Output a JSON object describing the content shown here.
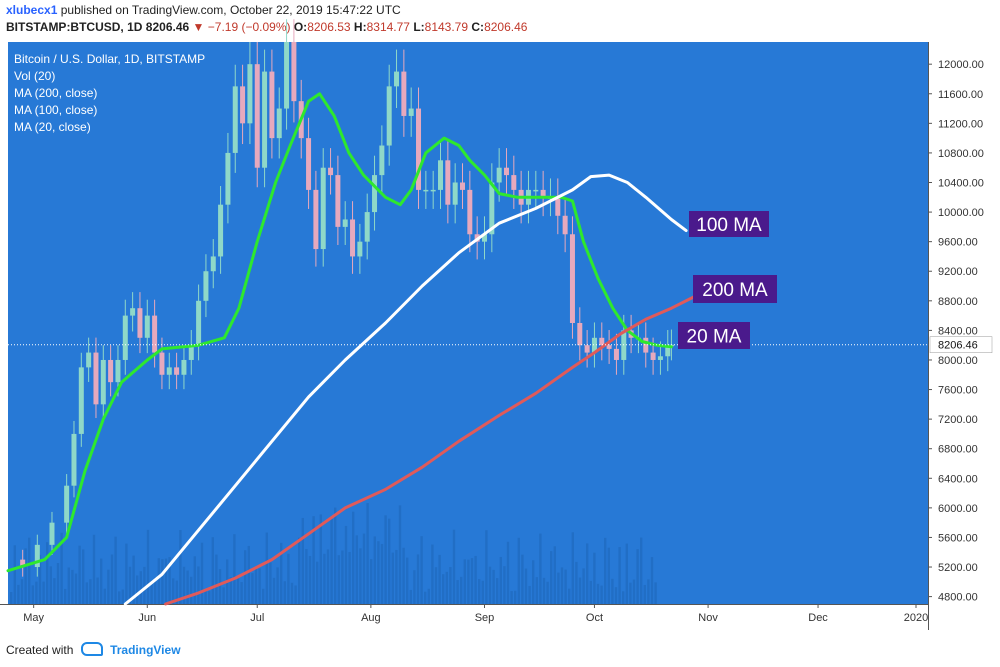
{
  "header": {
    "username": "xlubecx1",
    "published_text": "published on TradingView.com, October 22, 2019 15:47:22 UTC",
    "symbol_text": "BITSTAMP:BTCUSD, 1D",
    "last_price": "8206.46",
    "change_text": "−7.19 (−0.09%)",
    "open_label": "O:",
    "open": "8206.53",
    "high_label": "H:",
    "high": "8314.77",
    "low_label": "L:",
    "low": "8143.79",
    "close_label": "C:",
    "close": "8206.46"
  },
  "legend": [
    "Bitcoin / U.S. Dollar, 1D, BITSTAMP",
    "Vol (20)",
    "MA (200, close)",
    "MA (100, close)",
    "MA (20, close)"
  ],
  "footer": {
    "created_with": "Created with",
    "brand": "TradingView"
  },
  "annotations": [
    {
      "text": "100 MA",
      "series": "MA (100, close)"
    },
    {
      "text": "200 MA",
      "series": "MA (200, close)"
    },
    {
      "text": "20 MA",
      "series": "MA (20, close)"
    }
  ],
  "colors": {
    "background": "#2779d6",
    "ma20": "#2ee82e",
    "ma100": "#ffffff",
    "ma200": "#e05a5a",
    "up_candle": "#8fd8c8",
    "down_candle": "#e6a9bd",
    "label_bg": "#4a1a8c",
    "price_tag": "#ffffff"
  },
  "chart_data": {
    "type": "line",
    "title": "Bitcoin / U.S. Dollar, 1D, BITSTAMP",
    "x_ticks": [
      "May",
      "Jun",
      "Jul",
      "Aug",
      "Sep",
      "Oct",
      "Nov",
      "Dec",
      "2020"
    ],
    "y_ticks": [
      "4800.00",
      "5200.00",
      "5600.00",
      "6000.00",
      "6400.00",
      "6800.00",
      "7200.00",
      "7600.00",
      "8000.00",
      "8400.00",
      "8800.00",
      "9200.00",
      "9600.00",
      "10000.00",
      "10400.00",
      "10800.00",
      "11200.00",
      "11600.00",
      "12000.00"
    ],
    "ylim": [
      4700,
      12300
    ],
    "last_price_tag": "8206.46",
    "last_price": 8206.46,
    "date_range": [
      "2019-04-24",
      "2019-12-31"
    ],
    "candles_approx": [
      [
        "2019-04-24",
        5300
      ],
      [
        "2019-04-28",
        5200
      ],
      [
        "2019-05-02",
        5500
      ],
      [
        "2019-05-06",
        5800
      ],
      [
        "2019-05-10",
        6300
      ],
      [
        "2019-05-12",
        7000
      ],
      [
        "2019-05-14",
        7900
      ],
      [
        "2019-05-16",
        8100
      ],
      [
        "2019-05-18",
        7400
      ],
      [
        "2019-05-20",
        8000
      ],
      [
        "2019-05-22",
        7700
      ],
      [
        "2019-05-24",
        8000
      ],
      [
        "2019-05-26",
        8600
      ],
      [
        "2019-05-28",
        8700
      ],
      [
        "2019-05-30",
        8300
      ],
      [
        "2019-06-01",
        8600
      ],
      [
        "2019-06-03",
        8100
      ],
      [
        "2019-06-05",
        7800
      ],
      [
        "2019-06-07",
        7900
      ],
      [
        "2019-06-09",
        7800
      ],
      [
        "2019-06-11",
        8000
      ],
      [
        "2019-06-13",
        8200
      ],
      [
        "2019-06-15",
        8800
      ],
      [
        "2019-06-17",
        9200
      ],
      [
        "2019-06-19",
        9400
      ],
      [
        "2019-06-21",
        10100
      ],
      [
        "2019-06-23",
        10800
      ],
      [
        "2019-06-25",
        11700
      ],
      [
        "2019-06-27",
        11200
      ],
      [
        "2019-06-29",
        12000
      ],
      [
        "2019-07-01",
        10600
      ],
      [
        "2019-07-03",
        11900
      ],
      [
        "2019-07-05",
        11000
      ],
      [
        "2019-07-07",
        11400
      ],
      [
        "2019-07-09",
        12300
      ],
      [
        "2019-07-11",
        11500
      ],
      [
        "2019-07-13",
        11000
      ],
      [
        "2019-07-15",
        10300
      ],
      [
        "2019-07-17",
        9500
      ],
      [
        "2019-07-19",
        10600
      ],
      [
        "2019-07-21",
        10500
      ],
      [
        "2019-07-23",
        9800
      ],
      [
        "2019-07-25",
        9900
      ],
      [
        "2019-07-27",
        9400
      ],
      [
        "2019-07-29",
        9600
      ],
      [
        "2019-07-31",
        10000
      ],
      [
        "2019-08-02",
        10500
      ],
      [
        "2019-08-04",
        10900
      ],
      [
        "2019-08-06",
        11700
      ],
      [
        "2019-08-08",
        11900
      ],
      [
        "2019-08-10",
        11300
      ],
      [
        "2019-08-12",
        11400
      ],
      [
        "2019-08-14",
        10300
      ],
      [
        "2019-08-16",
        10300
      ],
      [
        "2019-08-18",
        10300
      ],
      [
        "2019-08-20",
        10700
      ],
      [
        "2019-08-22",
        10100
      ],
      [
        "2019-08-24",
        10400
      ],
      [
        "2019-08-26",
        10300
      ],
      [
        "2019-08-28",
        9700
      ],
      [
        "2019-08-30",
        9600
      ],
      [
        "2019-09-01",
        9700
      ],
      [
        "2019-09-03",
        10400
      ],
      [
        "2019-09-05",
        10600
      ],
      [
        "2019-09-07",
        10500
      ],
      [
        "2019-09-09",
        10300
      ],
      [
        "2019-09-11",
        10100
      ],
      [
        "2019-09-13",
        10300
      ],
      [
        "2019-09-15",
        10300
      ],
      [
        "2019-09-17",
        10200
      ],
      [
        "2019-09-19",
        10200
      ],
      [
        "2019-09-21",
        9950
      ],
      [
        "2019-09-23",
        9700
      ],
      [
        "2019-09-25",
        8500
      ],
      [
        "2019-09-27",
        8200
      ],
      [
        "2019-09-29",
        8100
      ],
      [
        "2019-10-01",
        8300
      ],
      [
        "2019-10-03",
        8200
      ],
      [
        "2019-10-05",
        8150
      ],
      [
        "2019-10-07",
        8000
      ],
      [
        "2019-10-09",
        8400
      ],
      [
        "2019-10-11",
        8300
      ],
      [
        "2019-10-13",
        8300
      ],
      [
        "2019-10-15",
        8100
      ],
      [
        "2019-10-17",
        8000
      ],
      [
        "2019-10-19",
        8050
      ],
      [
        "2019-10-21",
        8200
      ],
      [
        "2019-10-22",
        8206
      ]
    ],
    "series": [
      {
        "name": "MA (20, close)",
        "color": "#2ee82e",
        "points": [
          [
            "2019-04-24",
            5150
          ],
          [
            "2019-05-04",
            5300
          ],
          [
            "2019-05-10",
            5600
          ],
          [
            "2019-05-15",
            6500
          ],
          [
            "2019-05-20",
            7200
          ],
          [
            "2019-05-25",
            7700
          ],
          [
            "2019-06-01",
            8000
          ],
          [
            "2019-06-05",
            8150
          ],
          [
            "2019-06-15",
            8200
          ],
          [
            "2019-06-22",
            8300
          ],
          [
            "2019-06-26",
            8700
          ],
          [
            "2019-07-01",
            9600
          ],
          [
            "2019-07-06",
            10400
          ],
          [
            "2019-07-10",
            10900
          ],
          [
            "2019-07-15",
            11500
          ],
          [
            "2019-07-18",
            11600
          ],
          [
            "2019-07-22",
            11300
          ],
          [
            "2019-07-26",
            10800
          ],
          [
            "2019-07-30",
            10500
          ],
          [
            "2019-08-05",
            10200
          ],
          [
            "2019-08-09",
            10100
          ],
          [
            "2019-08-12",
            10300
          ],
          [
            "2019-08-16",
            10800
          ],
          [
            "2019-08-21",
            11000
          ],
          [
            "2019-08-25",
            10900
          ],
          [
            "2019-08-28",
            10700
          ],
          [
            "2019-09-01",
            10500
          ],
          [
            "2019-09-05",
            10250
          ],
          [
            "2019-09-10",
            10200
          ],
          [
            "2019-09-18",
            10200
          ],
          [
            "2019-09-22",
            10200
          ],
          [
            "2019-09-25",
            10150
          ],
          [
            "2019-09-28",
            9600
          ],
          [
            "2019-10-02",
            9100
          ],
          [
            "2019-10-06",
            8700
          ],
          [
            "2019-10-10",
            8400
          ],
          [
            "2019-10-14",
            8250
          ],
          [
            "2019-10-18",
            8200
          ],
          [
            "2019-10-22",
            8180
          ]
        ]
      },
      {
        "name": "MA (100, close)",
        "color": "#ffffff",
        "points": [
          [
            "2019-05-26",
            4700
          ],
          [
            "2019-06-05",
            5100
          ],
          [
            "2019-06-15",
            5700
          ],
          [
            "2019-06-25",
            6300
          ],
          [
            "2019-07-05",
            6900
          ],
          [
            "2019-07-15",
            7500
          ],
          [
            "2019-07-25",
            8000
          ],
          [
            "2019-08-05",
            8500
          ],
          [
            "2019-08-15",
            9000
          ],
          [
            "2019-08-25",
            9450
          ],
          [
            "2019-09-05",
            9850
          ],
          [
            "2019-09-15",
            10050
          ],
          [
            "2019-09-25",
            10300
          ],
          [
            "2019-09-30",
            10480
          ],
          [
            "2019-10-05",
            10500
          ],
          [
            "2019-10-10",
            10400
          ],
          [
            "2019-10-15",
            10200
          ],
          [
            "2019-10-22",
            9900
          ],
          [
            "2019-10-26",
            9750
          ]
        ]
      },
      {
        "name": "MA (200, close)",
        "color": "#e05a5a",
        "points": [
          [
            "2019-06-06",
            4700
          ],
          [
            "2019-06-15",
            4850
          ],
          [
            "2019-06-25",
            5050
          ],
          [
            "2019-07-05",
            5300
          ],
          [
            "2019-07-15",
            5650
          ],
          [
            "2019-07-25",
            6000
          ],
          [
            "2019-08-05",
            6250
          ],
          [
            "2019-08-15",
            6550
          ],
          [
            "2019-08-25",
            6900
          ],
          [
            "2019-09-05",
            7250
          ],
          [
            "2019-09-15",
            7550
          ],
          [
            "2019-09-25",
            7900
          ],
          [
            "2019-10-01",
            8100
          ],
          [
            "2019-10-08",
            8350
          ],
          [
            "2019-10-15",
            8550
          ],
          [
            "2019-10-22",
            8700
          ],
          [
            "2019-10-28",
            8850
          ]
        ]
      }
    ]
  }
}
